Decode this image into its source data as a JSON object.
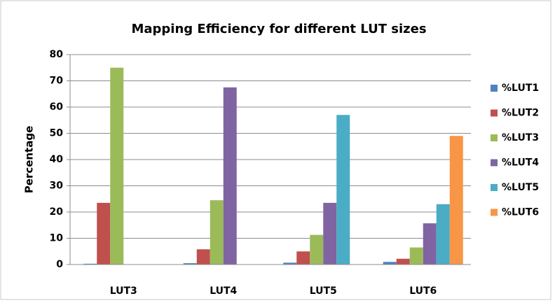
{
  "chart_data": {
    "type": "bar",
    "title": "Mapping Efficiency for different LUT sizes",
    "y_label": "Percentage",
    "categories": [
      "LUT3",
      "LUT4",
      "LUT5",
      "LUT6"
    ],
    "series": [
      {
        "name": "%LUT1",
        "color": "#4f81bd",
        "values": [
          0.3,
          0.5,
          0.7,
          1
        ]
      },
      {
        "name": "%LUT2",
        "color": "#c0504d",
        "values": [
          23.5,
          5.8,
          5,
          2.2
        ]
      },
      {
        "name": "%LUT3",
        "color": "#9bbb59",
        "values": [
          75,
          24.5,
          11.3,
          6.5
        ]
      },
      {
        "name": "%LUT4",
        "color": "#8064a2",
        "values": [
          0,
          67.5,
          23.5,
          15.7
        ]
      },
      {
        "name": "%LUT5",
        "color": "#4bacc6",
        "values": [
          0,
          0,
          57,
          23
        ]
      },
      {
        "name": "%LUT6",
        "color": "#f79646",
        "values": [
          0,
          0,
          0,
          49
        ]
      }
    ],
    "ylim": [
      0,
      80
    ],
    "yticks": [
      0,
      10,
      20,
      30,
      40,
      50,
      60,
      70,
      80
    ],
    "grid": true,
    "legend": "right"
  }
}
